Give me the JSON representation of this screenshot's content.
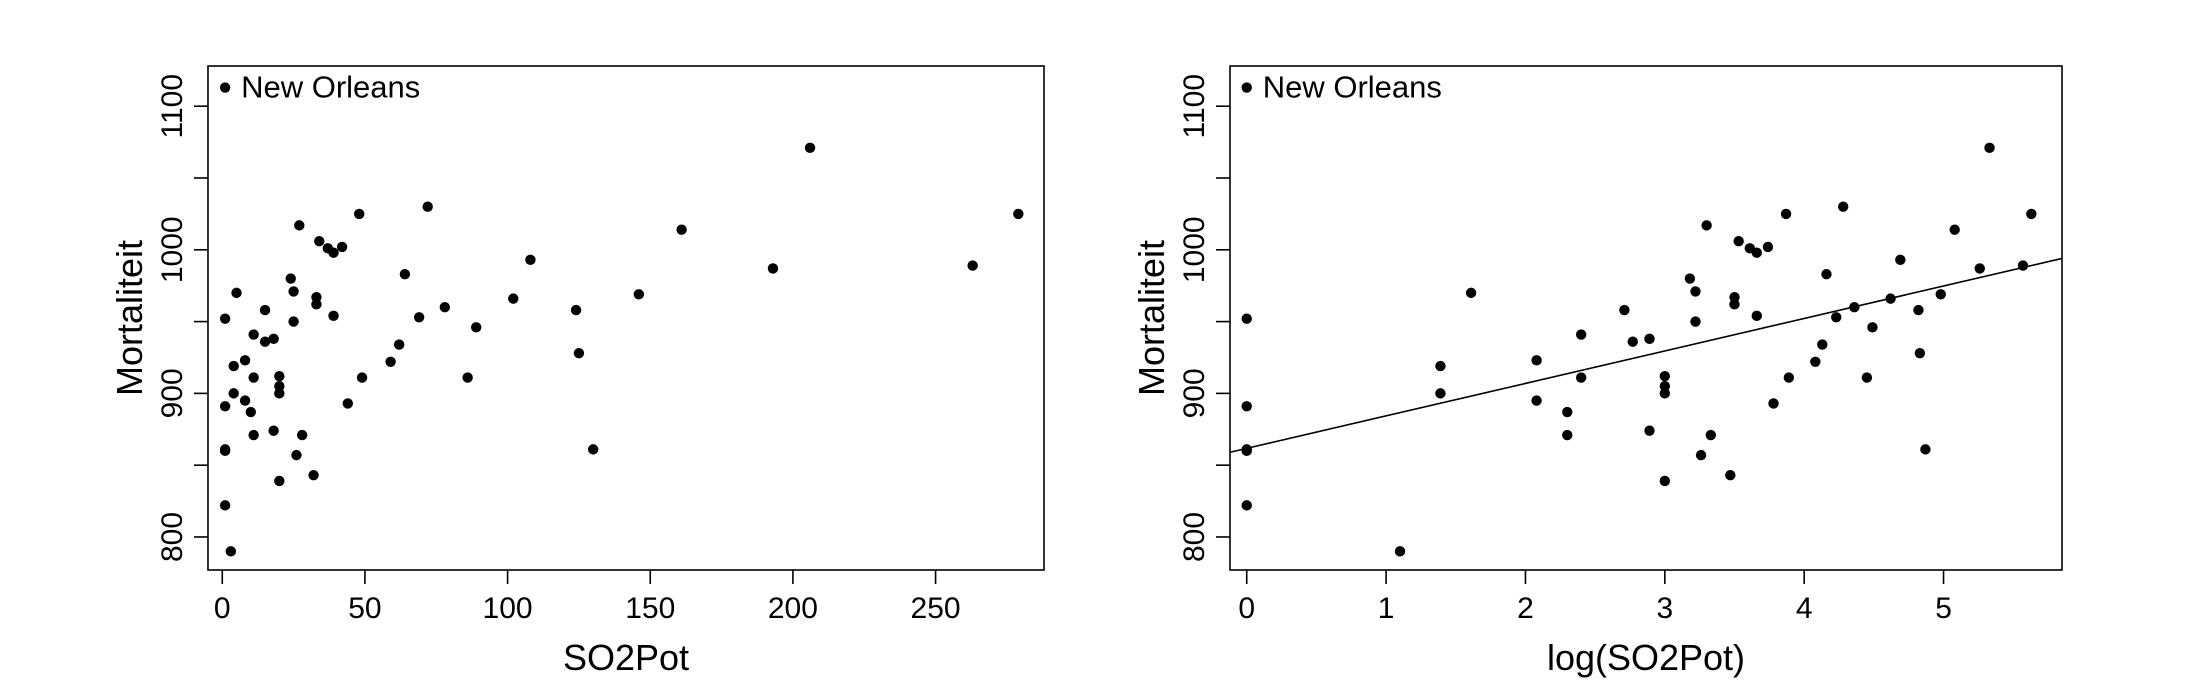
{
  "chart_data": [
    {
      "type": "scatter",
      "xlabel": "SO2Pot",
      "ylabel": "Mortaliteit",
      "xlim": [
        -5,
        288
      ],
      "ylim": [
        777,
        1128
      ],
      "xticks": [
        0,
        50,
        100,
        150,
        200,
        250
      ],
      "yticks": [
        800,
        900,
        1000,
        1100
      ],
      "annotation": {
        "text": "New Orleans",
        "x": 1,
        "y": 1113
      },
      "points": [
        [
          1,
          1113
        ],
        [
          206,
          1071
        ],
        [
          279,
          1025
        ],
        [
          72,
          1030
        ],
        [
          48,
          1025
        ],
        [
          27,
          1017
        ],
        [
          161,
          1014
        ],
        [
          34,
          1006
        ],
        [
          37,
          1001
        ],
        [
          42,
          1002
        ],
        [
          39,
          998
        ],
        [
          108,
          993
        ],
        [
          64,
          983
        ],
        [
          24,
          980
        ],
        [
          193,
          987
        ],
        [
          263,
          989
        ],
        [
          5,
          970
        ],
        [
          25,
          971
        ],
        [
          146,
          969
        ],
        [
          33,
          967
        ],
        [
          102,
          966
        ],
        [
          33,
          962
        ],
        [
          78,
          960
        ],
        [
          15,
          958
        ],
        [
          124,
          958
        ],
        [
          39,
          954
        ],
        [
          69,
          953
        ],
        [
          25,
          950
        ],
        [
          1,
          952
        ],
        [
          89,
          946
        ],
        [
          11,
          941
        ],
        [
          18,
          938
        ],
        [
          15,
          936
        ],
        [
          62,
          934
        ],
        [
          125,
          928
        ],
        [
          8,
          923
        ],
        [
          59,
          922
        ],
        [
          4,
          919
        ],
        [
          20,
          912
        ],
        [
          11,
          911
        ],
        [
          49,
          911
        ],
        [
          86,
          911
        ],
        [
          20,
          905
        ],
        [
          20,
          900
        ],
        [
          4,
          900
        ],
        [
          8,
          895
        ],
        [
          44,
          893
        ],
        [
          1,
          891
        ],
        [
          10,
          887
        ],
        [
          18,
          874
        ],
        [
          11,
          871
        ],
        [
          28,
          871
        ],
        [
          1,
          861
        ],
        [
          1,
          860
        ],
        [
          130,
          861
        ],
        [
          26,
          857
        ],
        [
          32,
          843
        ],
        [
          20,
          839
        ],
        [
          1,
          822
        ],
        [
          3,
          790
        ]
      ]
    },
    {
      "type": "scatter",
      "xlabel": "log(SO2Pot)",
      "ylabel": "Mortaliteit",
      "xlim": [
        -0.12,
        5.85
      ],
      "ylim": [
        777,
        1128
      ],
      "xticks": [
        0,
        1,
        2,
        3,
        4,
        5
      ],
      "yticks": [
        800,
        900,
        1000,
        1100
      ],
      "annotation": {
        "text": "New Orleans",
        "x": 0,
        "y": 1113
      },
      "fit_line": {
        "x": [
          -0.12,
          5.85
        ],
        "y": [
          859,
          994
        ]
      },
      "points": [
        [
          0,
          1113
        ],
        [
          5.33,
          1071
        ],
        [
          5.63,
          1025
        ],
        [
          4.28,
          1030
        ],
        [
          3.87,
          1025
        ],
        [
          3.3,
          1017
        ],
        [
          5.08,
          1014
        ],
        [
          3.53,
          1006
        ],
        [
          3.61,
          1001
        ],
        [
          3.74,
          1002
        ],
        [
          3.66,
          998
        ],
        [
          4.69,
          993
        ],
        [
          4.16,
          983
        ],
        [
          3.18,
          980
        ],
        [
          5.26,
          987
        ],
        [
          5.57,
          989
        ],
        [
          1.61,
          970
        ],
        [
          3.22,
          971
        ],
        [
          4.98,
          969
        ],
        [
          3.5,
          967
        ],
        [
          4.62,
          966
        ],
        [
          3.5,
          962
        ],
        [
          4.36,
          960
        ],
        [
          2.71,
          958
        ],
        [
          4.82,
          958
        ],
        [
          3.66,
          954
        ],
        [
          4.23,
          953
        ],
        [
          3.22,
          950
        ],
        [
          0,
          952
        ],
        [
          4.49,
          946
        ],
        [
          2.4,
          941
        ],
        [
          2.89,
          938
        ],
        [
          2.77,
          936
        ],
        [
          4.13,
          934
        ],
        [
          4.83,
          928
        ],
        [
          2.08,
          923
        ],
        [
          4.08,
          922
        ],
        [
          1.39,
          919
        ],
        [
          3.0,
          912
        ],
        [
          2.4,
          911
        ],
        [
          3.89,
          911
        ],
        [
          4.45,
          911
        ],
        [
          3.0,
          905
        ],
        [
          3.0,
          900
        ],
        [
          1.39,
          900
        ],
        [
          2.08,
          895
        ],
        [
          3.78,
          893
        ],
        [
          0,
          891
        ],
        [
          2.3,
          887
        ],
        [
          2.89,
          874
        ],
        [
          2.3,
          871
        ],
        [
          3.33,
          871
        ],
        [
          0,
          861
        ],
        [
          0,
          860
        ],
        [
          4.87,
          861
        ],
        [
          3.26,
          857
        ],
        [
          3.47,
          843
        ],
        [
          3.0,
          839
        ],
        [
          0,
          822
        ],
        [
          1.1,
          790
        ]
      ]
    }
  ]
}
